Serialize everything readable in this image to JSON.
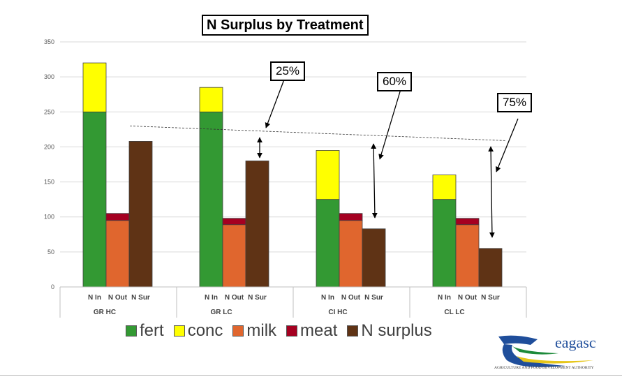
{
  "chart_data": {
    "type": "bar",
    "title": "N Surplus by Treatment",
    "y_axis": {
      "min": 0,
      "max": 350,
      "ticks": [
        0,
        50,
        100,
        150,
        200,
        250,
        300,
        350
      ]
    },
    "groups": [
      {
        "name": "GR  HC",
        "bar_labels": [
          "N In",
          "N Out",
          "N Sur"
        ],
        "fert": 250,
        "conc": 70,
        "milk": 95,
        "meat": 10,
        "n_surplus": 208
      },
      {
        "name": "GR  LC",
        "bar_labels": [
          "N In",
          "N Out",
          "N Sur"
        ],
        "fert": 250,
        "conc": 35,
        "milk": 89,
        "meat": 9,
        "n_surplus": 180
      },
      {
        "name": "CI  HC",
        "bar_labels": [
          "N In",
          "N Out",
          "N Sur"
        ],
        "fert": 125,
        "conc": 70,
        "milk": 95,
        "meat": 10,
        "n_surplus": 83
      },
      {
        "name": "CL  LC",
        "bar_labels": [
          "N In",
          "N Out",
          "N Sur"
        ],
        "fert": 125,
        "conc": 35,
        "milk": 89,
        "meat": 9,
        "n_surplus": 55
      }
    ],
    "legend": [
      {
        "label": "fert",
        "color": "#339933"
      },
      {
        "label": "conc",
        "color": "#ffff00"
      },
      {
        "label": "milk",
        "color": "#e0662e"
      },
      {
        "label": "meat",
        "color": "#a50021"
      },
      {
        "label": "N surplus",
        "color": "#5f3315"
      }
    ],
    "reference_line_value": 213,
    "annotations": [
      {
        "label": "25%",
        "group": 1
      },
      {
        "label": "60%",
        "group": 2
      },
      {
        "label": "75%",
        "group": 3
      }
    ]
  },
  "logo": {
    "text": "eagasc",
    "subtitle": "Agriculture and Food Development Authority"
  }
}
